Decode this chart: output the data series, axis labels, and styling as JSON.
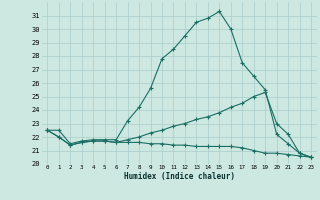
{
  "xlabel": "Humidex (Indice chaleur)",
  "bg_color": "#cce8e0",
  "grid_color": "#aacccc",
  "line_color": "#1a6e64",
  "xlim": [
    -0.5,
    23.5
  ],
  "ylim": [
    20,
    32
  ],
  "xticks": [
    0,
    1,
    2,
    3,
    4,
    5,
    6,
    7,
    8,
    9,
    10,
    11,
    12,
    13,
    14,
    15,
    16,
    17,
    18,
    19,
    20,
    21,
    22,
    23
  ],
  "yticks": [
    20,
    21,
    22,
    23,
    24,
    25,
    26,
    27,
    28,
    29,
    30,
    31
  ],
  "series": [
    [
      22.5,
      22.5,
      21.5,
      21.7,
      21.8,
      21.8,
      21.8,
      23.2,
      24.2,
      25.6,
      27.8,
      28.5,
      29.5,
      30.5,
      30.8,
      31.3,
      30.0,
      27.5,
      26.5,
      25.5,
      22.2,
      21.5,
      20.8,
      20.5
    ],
    [
      22.5,
      22.0,
      21.4,
      21.6,
      21.7,
      21.7,
      21.6,
      21.8,
      22.0,
      22.3,
      22.5,
      22.8,
      23.0,
      23.3,
      23.5,
      23.8,
      24.2,
      24.5,
      25.0,
      25.3,
      23.0,
      22.2,
      20.8,
      20.5
    ],
    [
      22.5,
      22.0,
      21.4,
      21.6,
      21.7,
      21.7,
      21.6,
      21.6,
      21.6,
      21.5,
      21.5,
      21.4,
      21.4,
      21.3,
      21.3,
      21.3,
      21.3,
      21.2,
      21.0,
      20.8,
      20.8,
      20.7,
      20.6,
      20.5
    ]
  ]
}
